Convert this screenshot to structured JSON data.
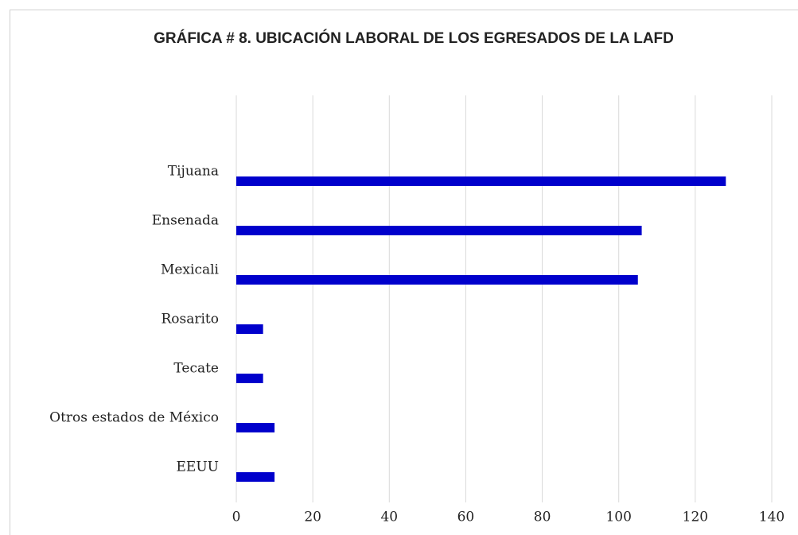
{
  "chart_data": {
    "type": "bar",
    "orientation": "horizontal",
    "title": "GRÁFICA # 8. UBICACIÓN LABORAL DE LOS EGRESADOS DE LA LAFD",
    "categories": [
      "Tijuana",
      "Ensenada",
      "Mexicali",
      "Rosarito",
      "Tecate",
      "Otros estados de México",
      "EEUU"
    ],
    "values": [
      128,
      106,
      105,
      7,
      7,
      10,
      10
    ],
    "color": "#0000cc",
    "xlim": [
      0,
      140
    ],
    "xticks": [
      0,
      20,
      40,
      60,
      80,
      100,
      120,
      140
    ],
    "grid": true
  }
}
